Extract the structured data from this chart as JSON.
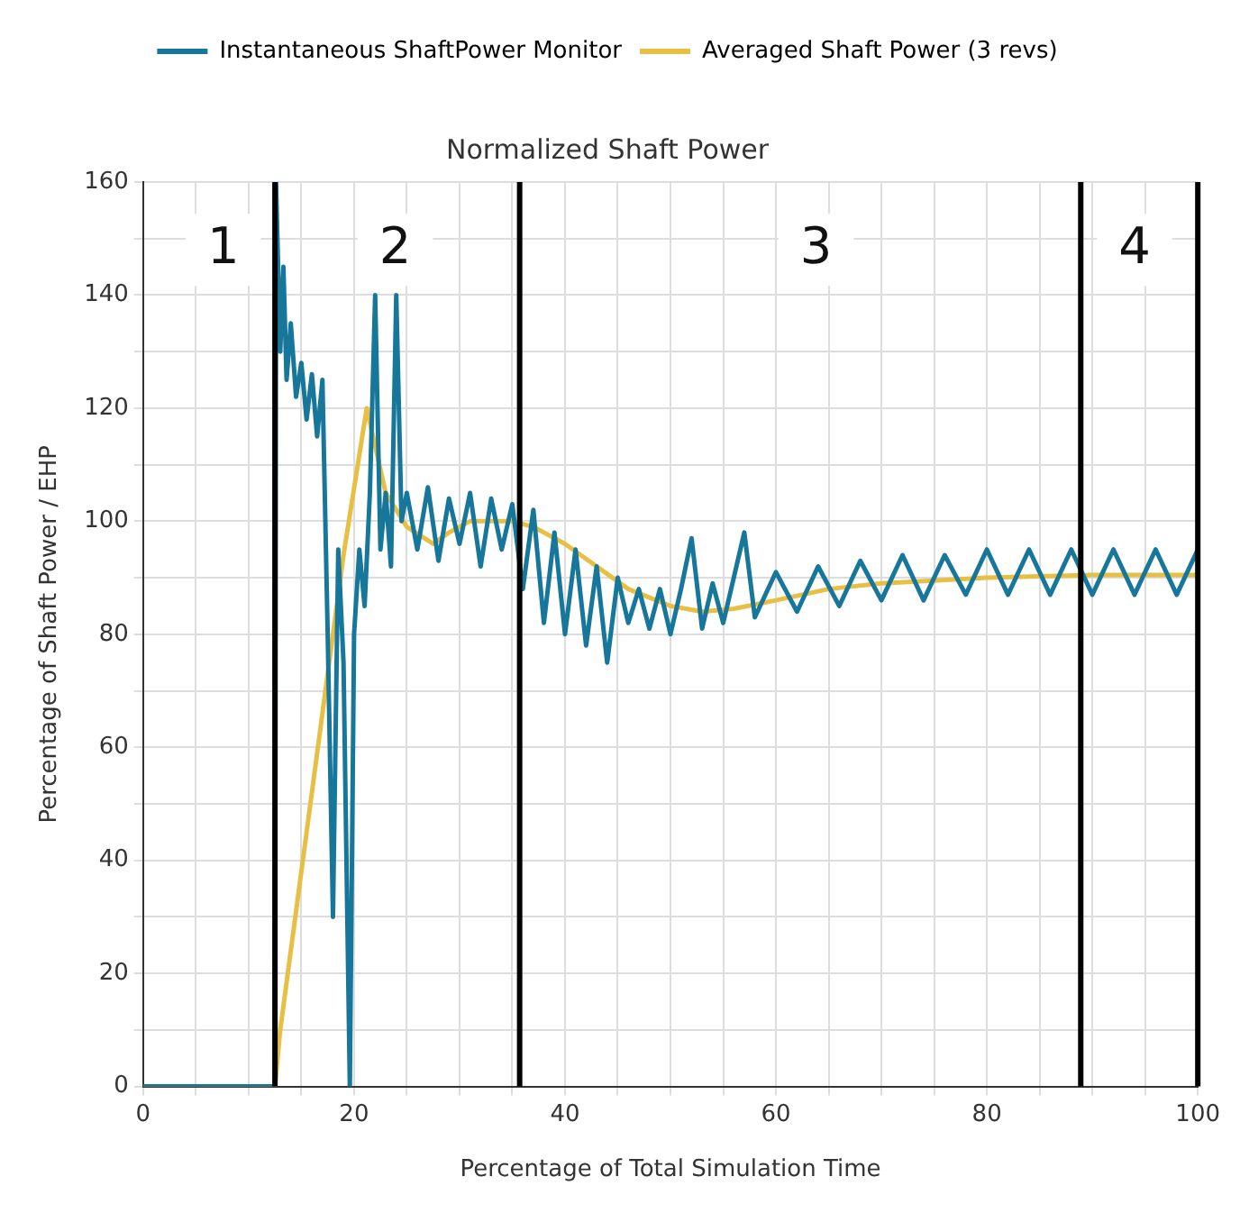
{
  "chart_data": {
    "type": "line",
    "title": "Normalized Shaft Power",
    "xlabel": "Percentage of Total Simulation Time",
    "ylabel": "Percentage of Shaft Power / EHP",
    "xlim": [
      0,
      100
    ],
    "ylim": [
      0,
      160
    ],
    "xticks": [
      0,
      {
        "value": 5,
        "label": null
      },
      {
        "value": 10,
        "label": null
      },
      {
        "value": 15,
        "label": null
      },
      20,
      {
        "value": 25,
        "label": null
      },
      {
        "value": 30,
        "label": null
      },
      {
        "value": 35,
        "label": null
      },
      40,
      {
        "value": 45,
        "label": null
      },
      {
        "value": 50,
        "label": null
      },
      {
        "value": 55,
        "label": null
      },
      60,
      {
        "value": 65,
        "label": null
      },
      {
        "value": 70,
        "label": null
      },
      {
        "value": 75,
        "label": null
      },
      80,
      {
        "value": 85,
        "label": null
      },
      {
        "value": 90,
        "label": null
      },
      {
        "value": 95,
        "label": null
      },
      100
    ],
    "yticks": [
      0,
      {
        "value": 10,
        "label": null
      },
      20,
      {
        "value": 30,
        "label": null
      },
      40,
      {
        "value": 50,
        "label": null
      },
      60,
      {
        "value": 70,
        "label": null
      },
      80,
      {
        "value": 90,
        "label": null
      },
      100,
      {
        "value": 110,
        "label": null
      },
      120,
      {
        "value": 130,
        "label": null
      },
      140,
      {
        "value": 150,
        "label": null
      },
      160
    ],
    "grid": true,
    "legend": "top",
    "marker": "none",
    "series": [
      {
        "name": "Instantaneous ShaftPower Monitor",
        "color": "#17779b",
        "x": [
          0,
          12.5,
          12.6,
          13,
          13.3,
          13.6,
          14,
          14.5,
          15,
          15.5,
          16,
          16.5,
          17,
          17.5,
          18,
          18.5,
          19,
          19.6,
          20,
          20.5,
          21,
          21.5,
          22,
          22.5,
          23,
          23.5,
          24,
          24.5,
          25,
          26,
          27,
          28,
          29,
          30,
          31,
          32,
          33,
          34,
          35,
          36,
          37,
          38,
          39,
          40,
          41,
          42,
          43,
          44,
          45,
          46,
          47,
          48,
          49,
          50,
          51,
          52,
          53,
          54,
          55,
          56,
          57,
          58,
          60,
          62,
          64,
          66,
          68,
          70,
          72,
          74,
          76,
          78,
          80,
          82,
          84,
          86,
          88,
          90,
          92,
          94,
          96,
          98,
          100
        ],
        "values": [
          0,
          0,
          160,
          130,
          145,
          125,
          135,
          122,
          128,
          118,
          126,
          115,
          125,
          80,
          30,
          95,
          75,
          0,
          80,
          95,
          85,
          105,
          140,
          95,
          105,
          92,
          140,
          100,
          105,
          95,
          106,
          93,
          104,
          96,
          105,
          92,
          104,
          95,
          103,
          88,
          102,
          82,
          98,
          80,
          95,
          78,
          92,
          75,
          90,
          82,
          88,
          81,
          88,
          80,
          88,
          97,
          81,
          89,
          82,
          90,
          98,
          83,
          91,
          84,
          92,
          85,
          93,
          86,
          94,
          86,
          94,
          87,
          95,
          87,
          95,
          87,
          95,
          87,
          95,
          87,
          95,
          87,
          95
        ]
      },
      {
        "name": "Averaged Shaft Power (3 revs)",
        "color": "#e8bf45",
        "x": [
          0,
          12.5,
          13,
          15,
          17,
          19,
          21.2,
          23,
          25,
          27.5,
          29,
          31,
          33,
          35,
          37,
          40,
          43,
          46,
          50,
          53,
          56,
          60,
          65,
          70,
          75,
          80,
          90,
          100
        ],
        "values": [
          0,
          0,
          10,
          38,
          66,
          94,
          120,
          105,
          99,
          96,
          98,
          100,
          100,
          100,
          99,
          96,
          92,
          88,
          85,
          84,
          84.5,
          86,
          88,
          89,
          89.5,
          90,
          90.5,
          90.5
        ]
      }
    ],
    "ref_lines": [
      {
        "axis": "x",
        "value": 12.5,
        "color": "#000000"
      },
      {
        "axis": "x",
        "value": 35.7,
        "color": "#000000"
      },
      {
        "axis": "x",
        "value": 88.9,
        "color": "#000000"
      },
      {
        "axis": "x",
        "value": 100,
        "color": "#000000"
      }
    ],
    "annotations": [
      {
        "text": "1",
        "x": 7.6,
        "y": 148
      },
      {
        "text": "2",
        "x": 23.9,
        "y": 148
      },
      {
        "text": "3",
        "x": 63.8,
        "y": 148
      },
      {
        "text": "4",
        "x": 94,
        "y": 148
      }
    ]
  }
}
